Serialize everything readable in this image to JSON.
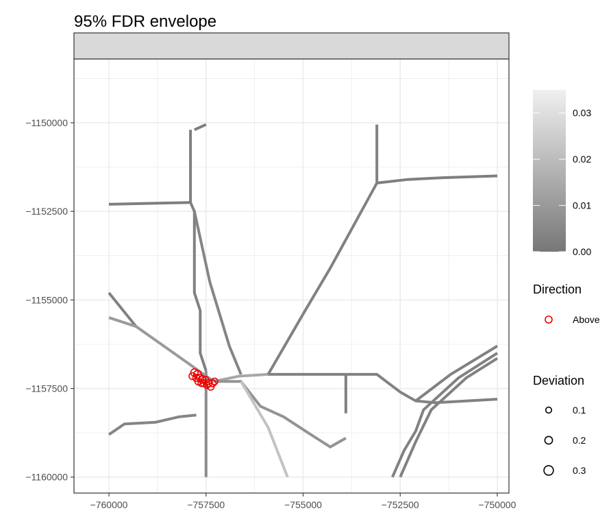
{
  "chart_data": {
    "type": "scatter",
    "title": "95% FDR envelope",
    "xlabel": "",
    "ylabel": "",
    "xlim": [
      -760900,
      -749700
    ],
    "ylim": [
      -1160450,
      -1148200
    ],
    "x_ticks": [
      -760000,
      -757500,
      -755000,
      -752500,
      -750000
    ],
    "x_tick_labels": [
      "−760000",
      "−757500",
      "−755000",
      "−752500",
      "−750000"
    ],
    "y_ticks": [
      -1150000,
      -1152500,
      -1155000,
      -1157500,
      -1160000
    ],
    "y_tick_labels": [
      "−1150000",
      "−1152500",
      "−1155000",
      "−1157500",
      "−1160000"
    ],
    "grid": true,
    "facet_strip": "",
    "colors": {
      "panel_border": "#333333",
      "strip_fill": "#d9d9d9",
      "grid": "#ebebeb",
      "network_low": "#777777",
      "network_high": "#f0f0f0",
      "points": "#ee0000"
    },
    "network_segments": [
      {
        "points": [
          [
            -757800,
            -1150200
          ],
          [
            -757500,
            -1150050
          ]
        ],
        "value": 0.002
      },
      {
        "points": [
          [
            -757900,
            -1150200
          ],
          [
            -757900,
            -1152250
          ]
        ],
        "value": 0.002
      },
      {
        "points": [
          [
            -760000,
            -1152300
          ],
          [
            -757900,
            -1152250
          ]
        ],
        "value": 0.002
      },
      {
        "points": [
          [
            -757900,
            -1152250
          ],
          [
            -757800,
            -1152500
          ],
          [
            -757800,
            -1154800
          ],
          [
            -757650,
            -1155300
          ],
          [
            -757650,
            -1156500
          ],
          [
            -757500,
            -1157000
          ]
        ],
        "value": 0.003
      },
      {
        "points": [
          [
            -757800,
            -1152500
          ],
          [
            -757400,
            -1154500
          ],
          [
            -756900,
            -1156300
          ],
          [
            -756600,
            -1157100
          ]
        ],
        "value": 0.004
      },
      {
        "points": [
          [
            -757500,
            -1157000
          ],
          [
            -757500,
            -1160000
          ]
        ],
        "value": 0.006
      },
      {
        "points": [
          [
            -760000,
            -1154800
          ],
          [
            -759300,
            -1155750
          ]
        ],
        "value": 0.003
      },
      {
        "points": [
          [
            -760000,
            -1155500
          ],
          [
            -759300,
            -1155750
          ],
          [
            -758200,
            -1156600
          ],
          [
            -757300,
            -1157300
          ]
        ],
        "value": 0.01
      },
      {
        "points": [
          [
            -757300,
            -1157300
          ],
          [
            -756650,
            -1157150
          ],
          [
            -755900,
            -1157100
          ]
        ],
        "value": 0.014
      },
      {
        "points": [
          [
            -755900,
            -1157100
          ],
          [
            -753900,
            -1157100
          ]
        ],
        "value": 0.003
      },
      {
        "points": [
          [
            -753900,
            -1157100
          ],
          [
            -753900,
            -1158200
          ]
        ],
        "value": 0.003
      },
      {
        "points": [
          [
            -753900,
            -1157100
          ],
          [
            -753100,
            -1157100
          ],
          [
            -752500,
            -1157600
          ],
          [
            -752100,
            -1157850
          ],
          [
            -751600,
            -1157900
          ],
          [
            -750000,
            -1157800
          ]
        ],
        "value": 0.003
      },
      {
        "points": [
          [
            -757300,
            -1157300
          ],
          [
            -756600,
            -1157300
          ],
          [
            -756100,
            -1158000
          ],
          [
            -755500,
            -1158300
          ],
          [
            -754800,
            -1158800
          ],
          [
            -754300,
            -1159150
          ],
          [
            -753900,
            -1158900
          ]
        ],
        "value": 0.008
      },
      {
        "points": [
          [
            -756600,
            -1157300
          ],
          [
            -755900,
            -1158600
          ],
          [
            -755400,
            -1160000
          ]
        ],
        "value": 0.022
      },
      {
        "points": [
          [
            -755900,
            -1157100
          ],
          [
            -755000,
            -1155400
          ],
          [
            -754300,
            -1154100
          ],
          [
            -753100,
            -1151700
          ],
          [
            -753100,
            -1150050
          ]
        ],
        "value": 0.003
      },
      {
        "points": [
          [
            -753100,
            -1151700
          ],
          [
            -752300,
            -1151600
          ],
          [
            -751400,
            -1151550
          ],
          [
            -750000,
            -1151500
          ]
        ],
        "value": 0.002
      },
      {
        "points": [
          [
            -760000,
            -1158800
          ],
          [
            -759600,
            -1158500
          ],
          [
            -758800,
            -1158450
          ],
          [
            -758200,
            -1158300
          ],
          [
            -757750,
            -1158250
          ]
        ],
        "value": 0.004
      },
      {
        "points": [
          [
            -752700,
            -1160000
          ],
          [
            -752400,
            -1159250
          ],
          [
            -752100,
            -1158700
          ],
          [
            -751900,
            -1158100
          ],
          [
            -751000,
            -1157200
          ],
          [
            -750000,
            -1156500
          ]
        ],
        "value": 0.003
      },
      {
        "points": [
          [
            -752500,
            -1160000
          ],
          [
            -752100,
            -1159000
          ],
          [
            -751700,
            -1158100
          ],
          [
            -750800,
            -1157200
          ],
          [
            -750000,
            -1156650
          ]
        ],
        "value": 0.003
      },
      {
        "points": [
          [
            -752100,
            -1157850
          ],
          [
            -751200,
            -1157100
          ],
          [
            -750000,
            -1156300
          ]
        ],
        "value": 0.003
      }
    ],
    "series": [
      {
        "name": "Above",
        "x": [
          -757850,
          -757800,
          -757750,
          -757720,
          -757700,
          -757650,
          -757620,
          -757600,
          -757560,
          -757520,
          -757480,
          -757430,
          -757380,
          -757330,
          -757280
        ],
        "y": [
          -1157150,
          -1157050,
          -1157200,
          -1157100,
          -1157300,
          -1157200,
          -1157350,
          -1157250,
          -1157350,
          -1157250,
          -1157400,
          -1157350,
          -1157450,
          -1157350,
          -1157300
        ],
        "deviation": [
          0.15,
          0.18,
          0.16,
          0.2,
          0.15,
          0.17,
          0.14,
          0.18,
          0.15,
          0.16,
          0.14,
          0.17,
          0.15,
          0.16,
          0.14
        ]
      }
    ],
    "legend": {
      "placement": "right",
      "colorbar": {
        "title": "",
        "min": 0,
        "max": 0.035,
        "ticks": [
          0.0,
          0.01,
          0.02,
          0.03
        ],
        "tick_labels": [
          "0.00",
          "0.01",
          "0.02",
          "0.03"
        ]
      },
      "direction": {
        "title": "Direction",
        "entries": [
          "Above"
        ]
      },
      "deviation": {
        "title": "Deviation",
        "values": [
          0.1,
          0.2,
          0.3
        ],
        "labels": [
          "0.1",
          "0.2",
          "0.3"
        ]
      }
    }
  }
}
